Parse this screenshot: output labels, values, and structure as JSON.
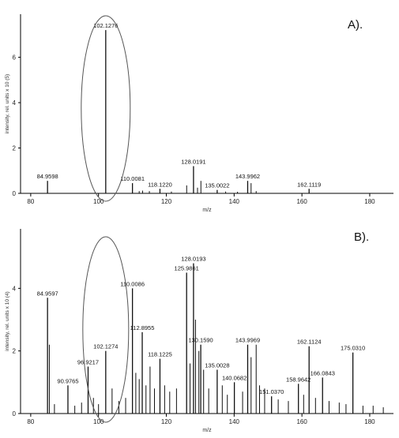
{
  "chart_data": [
    {
      "type": "bar",
      "panel_label": "A).",
      "xlabel": "m/z",
      "ylabel": "intensity, rel. units x 10 (5)",
      "xlim": [
        77,
        187
      ],
      "ylim": [
        0,
        7.9
      ],
      "x_ticks": [
        80,
        100,
        120,
        140,
        160,
        180
      ],
      "y_ticks": [
        0,
        2,
        4,
        6
      ],
      "highlight_ellipse_center_x": 102.1276,
      "peaks": [
        {
          "mz": 84.9598,
          "intensity": 0.55,
          "label": "84.9598"
        },
        {
          "mz": 102.1276,
          "intensity": 7.2,
          "label": "102.1276"
        },
        {
          "mz": 110.0081,
          "intensity": 0.45,
          "label": "110.0081"
        },
        {
          "mz": 118.122,
          "intensity": 0.2,
          "label": "118.1220"
        },
        {
          "mz": 128.0191,
          "intensity": 1.2,
          "label": "128.0191"
        },
        {
          "mz": 135.0022,
          "intensity": 0.15,
          "label": "135.0022"
        },
        {
          "mz": 143.9962,
          "intensity": 0.55,
          "label": "143.9962"
        },
        {
          "mz": 162.1119,
          "intensity": 0.2,
          "label": "162.1119"
        },
        {
          "mz": 126.0,
          "intensity": 0.35,
          "label": ""
        },
        {
          "mz": 129.2,
          "intensity": 0.25,
          "label": ""
        },
        {
          "mz": 130.2,
          "intensity": 0.55,
          "label": ""
        },
        {
          "mz": 145.0,
          "intensity": 0.45,
          "label": ""
        },
        {
          "mz": 113.0,
          "intensity": 0.12,
          "label": ""
        },
        {
          "mz": 115.0,
          "intensity": 0.1,
          "label": ""
        },
        {
          "mz": 112.0,
          "intensity": 0.1,
          "label": ""
        },
        {
          "mz": 121.5,
          "intensity": 0.08,
          "label": ""
        },
        {
          "mz": 99.0,
          "intensity": 0.05,
          "label": ""
        },
        {
          "mz": 137.5,
          "intensity": 0.08,
          "label": ""
        },
        {
          "mz": 141.0,
          "intensity": 0.07,
          "label": ""
        },
        {
          "mz": 146.5,
          "intensity": 0.1,
          "label": ""
        }
      ]
    },
    {
      "type": "bar",
      "panel_label": "B).",
      "xlabel": "m/z",
      "ylabel": "intensity, rel. units x 10 (4)",
      "xlim": [
        77,
        187
      ],
      "ylim": [
        0,
        5.9
      ],
      "x_ticks": [
        80,
        100,
        120,
        140,
        160,
        180
      ],
      "y_ticks": [
        0,
        2,
        4
      ],
      "highlight_ellipse_center_x": 102.1274,
      "peaks": [
        {
          "mz": 84.9597,
          "intensity": 3.7,
          "label": "84.9597"
        },
        {
          "mz": 90.9765,
          "intensity": 0.9,
          "label": "90.9765"
        },
        {
          "mz": 96.9217,
          "intensity": 1.5,
          "label": "96.9217"
        },
        {
          "mz": 102.1274,
          "intensity": 2.0,
          "label": "102.1274"
        },
        {
          "mz": 110.0086,
          "intensity": 4.0,
          "label": "110.0086"
        },
        {
          "mz": 112.8955,
          "intensity": 2.6,
          "label": "112.8955"
        },
        {
          "mz": 118.1225,
          "intensity": 1.75,
          "label": "118.1225"
        },
        {
          "mz": 125.9861,
          "intensity": 4.5,
          "label": "125.9861"
        },
        {
          "mz": 128.0193,
          "intensity": 4.8,
          "label": "128.0193"
        },
        {
          "mz": 130.159,
          "intensity": 2.2,
          "label": "130.1590"
        },
        {
          "mz": 135.0028,
          "intensity": 1.4,
          "label": "135.0028"
        },
        {
          "mz": 140.0682,
          "intensity": 1.0,
          "label": "140.0682"
        },
        {
          "mz": 143.9969,
          "intensity": 2.2,
          "label": "143.9969"
        },
        {
          "mz": 151.037,
          "intensity": 0.55,
          "label": "151.0370"
        },
        {
          "mz": 158.9642,
          "intensity": 0.95,
          "label": "158.9642"
        },
        {
          "mz": 162.1124,
          "intensity": 2.15,
          "label": "162.1124"
        },
        {
          "mz": 166.0843,
          "intensity": 1.15,
          "label": "166.0843"
        },
        {
          "mz": 175.031,
          "intensity": 1.95,
          "label": "175.0310"
        },
        {
          "mz": 85.5,
          "intensity": 2.2,
          "label": ""
        },
        {
          "mz": 128.6,
          "intensity": 3.0,
          "label": ""
        },
        {
          "mz": 129.6,
          "intensity": 2.0,
          "label": ""
        },
        {
          "mz": 111.0,
          "intensity": 1.3,
          "label": ""
        },
        {
          "mz": 112.0,
          "intensity": 1.1,
          "label": ""
        },
        {
          "mz": 114.0,
          "intensity": 0.9,
          "label": ""
        },
        {
          "mz": 115.2,
          "intensity": 1.5,
          "label": ""
        },
        {
          "mz": 116.5,
          "intensity": 0.8,
          "label": ""
        },
        {
          "mz": 119.5,
          "intensity": 0.9,
          "label": ""
        },
        {
          "mz": 121.0,
          "intensity": 0.7,
          "label": ""
        },
        {
          "mz": 123.0,
          "intensity": 0.8,
          "label": ""
        },
        {
          "mz": 127.0,
          "intensity": 1.6,
          "label": ""
        },
        {
          "mz": 131.0,
          "intensity": 1.4,
          "label": ""
        },
        {
          "mz": 132.5,
          "intensity": 0.8,
          "label": ""
        },
        {
          "mz": 136.5,
          "intensity": 0.9,
          "label": ""
        },
        {
          "mz": 138.0,
          "intensity": 0.6,
          "label": ""
        },
        {
          "mz": 142.5,
          "intensity": 0.7,
          "label": ""
        },
        {
          "mz": 145.0,
          "intensity": 1.8,
          "label": ""
        },
        {
          "mz": 146.5,
          "intensity": 2.2,
          "label": ""
        },
        {
          "mz": 147.5,
          "intensity": 0.9,
          "label": ""
        },
        {
          "mz": 149.0,
          "intensity": 0.8,
          "label": ""
        },
        {
          "mz": 153.0,
          "intensity": 0.45,
          "label": ""
        },
        {
          "mz": 156.0,
          "intensity": 0.4,
          "label": ""
        },
        {
          "mz": 160.5,
          "intensity": 0.6,
          "label": ""
        },
        {
          "mz": 164.0,
          "intensity": 0.5,
          "label": ""
        },
        {
          "mz": 168.0,
          "intensity": 0.4,
          "label": ""
        },
        {
          "mz": 171.0,
          "intensity": 0.35,
          "label": ""
        },
        {
          "mz": 173.0,
          "intensity": 0.3,
          "label": ""
        },
        {
          "mz": 178.0,
          "intensity": 0.25,
          "label": ""
        },
        {
          "mz": 181.0,
          "intensity": 0.25,
          "label": ""
        },
        {
          "mz": 184.0,
          "intensity": 0.2,
          "label": ""
        },
        {
          "mz": 87.0,
          "intensity": 0.3,
          "label": ""
        },
        {
          "mz": 93.0,
          "intensity": 0.25,
          "label": ""
        },
        {
          "mz": 95.0,
          "intensity": 0.35,
          "label": ""
        },
        {
          "mz": 98.5,
          "intensity": 0.5,
          "label": ""
        },
        {
          "mz": 100.0,
          "intensity": 0.3,
          "label": ""
        },
        {
          "mz": 104.0,
          "intensity": 0.8,
          "label": ""
        },
        {
          "mz": 106.0,
          "intensity": 0.4,
          "label": ""
        },
        {
          "mz": 108.0,
          "intensity": 0.5,
          "label": ""
        }
      ]
    }
  ]
}
